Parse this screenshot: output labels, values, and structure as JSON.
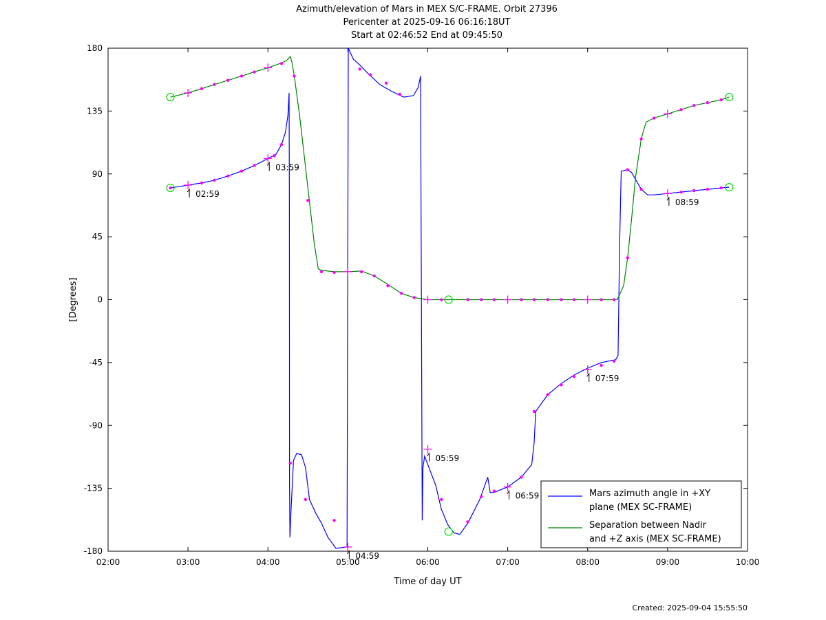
{
  "header": {
    "title": "Azimuth/elevation of Mars in MEX S/C-FRAME.  Orbit 27396",
    "pericenter": "Pericenter at 2025-09-16 06:16:18UT",
    "start_end": "Start at 02:46:52 End at 09:45:50"
  },
  "footer": {
    "created": "Created: 2025-09-04 15:55:50"
  },
  "chart_data": {
    "type": "line",
    "xlabel": "Time of day UT",
    "ylabel": "[Degrees]",
    "xlim": [
      2,
      10
    ],
    "ylim": [
      -180,
      180
    ],
    "x_unit": "hours of day UT",
    "x_ticks": [
      {
        "v": 2,
        "label": "02:00"
      },
      {
        "v": 3,
        "label": "03:00"
      },
      {
        "v": 4,
        "label": "04:00"
      },
      {
        "v": 5,
        "label": "05:00"
      },
      {
        "v": 6,
        "label": "06:00"
      },
      {
        "v": 7,
        "label": "07:00"
      },
      {
        "v": 8,
        "label": "08:00"
      },
      {
        "v": 9,
        "label": "09:00"
      },
      {
        "v": 10,
        "label": "10:00"
      }
    ],
    "y_ticks": [
      {
        "v": 180,
        "label": "180"
      },
      {
        "v": 135,
        "label": "135"
      },
      {
        "v": 90,
        "label": "90"
      },
      {
        "v": 45,
        "label": "45"
      },
      {
        "v": 0,
        "label": "0"
      },
      {
        "v": -45,
        "label": "-45"
      },
      {
        "v": -90,
        "label": "-90"
      },
      {
        "v": -135,
        "label": "-135"
      },
      {
        "v": -180,
        "label": "-180"
      }
    ],
    "grid": false,
    "legend_position": "bottom-right",
    "series": [
      {
        "name": "Mars azimuth angle in +XY plane (MEX SC-FRAME)",
        "legend_lines": [
          "Mars azimuth angle in +XY",
          "plane (MEX SC-FRAME)"
        ],
        "color": "#0000ff",
        "points": [
          [
            2.78,
            80
          ],
          [
            3.0,
            82
          ],
          [
            3.17,
            83.5
          ],
          [
            3.33,
            85.5
          ],
          [
            3.5,
            88.5
          ],
          [
            3.67,
            92
          ],
          [
            3.83,
            96
          ],
          [
            4.0,
            101
          ],
          [
            4.1,
            104
          ],
          [
            4.17,
            111
          ],
          [
            4.22,
            120
          ],
          [
            4.25,
            132
          ],
          [
            4.265,
            148
          ],
          [
            4.268,
            68
          ],
          [
            4.27,
            -130
          ],
          [
            4.275,
            -170
          ],
          [
            4.29,
            -150
          ],
          [
            4.32,
            -115
          ],
          [
            4.36,
            -110
          ],
          [
            4.42,
            -111
          ],
          [
            4.47,
            -120
          ],
          [
            4.52,
            -143
          ],
          [
            4.6,
            -153
          ],
          [
            4.67,
            -160
          ],
          [
            4.75,
            -170
          ],
          [
            4.85,
            -178
          ],
          [
            4.99,
            -177
          ],
          [
            5.005,
            180
          ],
          [
            5.07,
            172
          ],
          [
            5.15,
            168
          ],
          [
            5.25,
            162
          ],
          [
            5.4,
            154
          ],
          [
            5.55,
            149
          ],
          [
            5.7,
            145
          ],
          [
            5.82,
            146
          ],
          [
            5.88,
            152
          ],
          [
            5.91,
            160
          ],
          [
            5.93,
            -158
          ],
          [
            5.94,
            -120
          ],
          [
            5.96,
            -112
          ],
          [
            6.0,
            -118
          ],
          [
            6.1,
            -133
          ],
          [
            6.17,
            -150
          ],
          [
            6.25,
            -161
          ],
          [
            6.33,
            -167
          ],
          [
            6.4,
            -168
          ],
          [
            6.5,
            -160
          ],
          [
            6.65,
            -143
          ],
          [
            6.75,
            -127
          ],
          [
            6.78,
            -138
          ],
          [
            6.83,
            -138
          ],
          [
            7.0,
            -134
          ],
          [
            7.17,
            -127
          ],
          [
            7.3,
            -118
          ],
          [
            7.33,
            -103
          ],
          [
            7.35,
            -80
          ],
          [
            7.5,
            -68
          ],
          [
            7.67,
            -60
          ],
          [
            7.83,
            -54
          ],
          [
            8.0,
            -49
          ],
          [
            8.17,
            -45
          ],
          [
            8.35,
            -43
          ],
          [
            8.38,
            -40
          ],
          [
            8.4,
            40
          ],
          [
            8.42,
            92
          ],
          [
            8.5,
            93
          ],
          [
            8.55,
            91
          ],
          [
            8.67,
            79
          ],
          [
            8.75,
            75
          ],
          [
            8.83,
            75
          ],
          [
            9.0,
            76
          ],
          [
            9.17,
            77
          ],
          [
            9.33,
            78
          ],
          [
            9.5,
            79
          ],
          [
            9.67,
            80
          ],
          [
            9.77,
            80.5
          ]
        ]
      },
      {
        "name": "Separation between Nadir and +Z axis (MEX SC-FRAME)",
        "legend_lines": [
          "Separation between Nadir",
          "and +Z axis (MEX SC-FRAME)"
        ],
        "color": "#008000",
        "points": [
          [
            2.78,
            145
          ],
          [
            3.0,
            148
          ],
          [
            3.17,
            151
          ],
          [
            3.33,
            154
          ],
          [
            3.5,
            157
          ],
          [
            3.67,
            160
          ],
          [
            3.83,
            163
          ],
          [
            4.0,
            166
          ],
          [
            4.15,
            169
          ],
          [
            4.23,
            171
          ],
          [
            4.28,
            174
          ],
          [
            4.3,
            170
          ],
          [
            4.33,
            160
          ],
          [
            4.4,
            130
          ],
          [
            4.5,
            80
          ],
          [
            4.58,
            40
          ],
          [
            4.63,
            22
          ],
          [
            4.67,
            21
          ],
          [
            4.83,
            20
          ],
          [
            5.0,
            20
          ],
          [
            5.17,
            20.5
          ],
          [
            5.33,
            17
          ],
          [
            5.5,
            11
          ],
          [
            5.67,
            4.5
          ],
          [
            5.83,
            1.5
          ],
          [
            6.0,
            0
          ],
          [
            6.5,
            0
          ],
          [
            7.0,
            0
          ],
          [
            7.5,
            0
          ],
          [
            8.0,
            0
          ],
          [
            8.37,
            0
          ],
          [
            8.45,
            10
          ],
          [
            8.5,
            30
          ],
          [
            8.55,
            58
          ],
          [
            8.6,
            88
          ],
          [
            8.67,
            115
          ],
          [
            8.73,
            127
          ],
          [
            8.83,
            130
          ],
          [
            9.0,
            133
          ],
          [
            9.17,
            136
          ],
          [
            9.33,
            139
          ],
          [
            9.5,
            141
          ],
          [
            9.67,
            143
          ],
          [
            9.77,
            145
          ]
        ]
      }
    ],
    "markers": {
      "dots": [
        [
          2.78,
          80
        ],
        [
          3.17,
          83.5
        ],
        [
          3.33,
          85.5
        ],
        [
          3.5,
          88.5
        ],
        [
          3.67,
          92
        ],
        [
          3.83,
          96
        ],
        [
          4.17,
          111
        ],
        [
          4.08,
          103
        ],
        [
          4.28,
          -117
        ],
        [
          4.47,
          -143
        ],
        [
          4.83,
          -158
        ],
        [
          5.15,
          165
        ],
        [
          5.28,
          161
        ],
        [
          5.48,
          155
        ],
        [
          5.65,
          147
        ],
        [
          6.17,
          -143
        ],
        [
          6.5,
          -159
        ],
        [
          6.67,
          -141
        ],
        [
          6.83,
          -137
        ],
        [
          7.17,
          -127
        ],
        [
          7.33,
          -80
        ],
        [
          7.5,
          -68
        ],
        [
          7.67,
          -61
        ],
        [
          7.83,
          -55
        ],
        [
          8.17,
          -47
        ],
        [
          8.33,
          -44
        ],
        [
          8.5,
          93
        ],
        [
          8.67,
          79
        ],
        [
          9.17,
          77
        ],
        [
          9.33,
          78
        ],
        [
          9.5,
          79
        ],
        [
          9.67,
          80
        ],
        [
          3.17,
          151
        ],
        [
          3.33,
          154
        ],
        [
          3.5,
          157
        ],
        [
          3.67,
          160
        ],
        [
          3.83,
          163
        ],
        [
          4.17,
          169
        ],
        [
          4.33,
          160
        ],
        [
          4.5,
          71
        ],
        [
          4.67,
          20
        ],
        [
          4.83,
          19.5
        ],
        [
          5.17,
          20
        ],
        [
          5.33,
          17
        ],
        [
          5.5,
          10
        ],
        [
          5.67,
          4.5
        ],
        [
          5.83,
          1.5
        ],
        [
          6.17,
          0
        ],
        [
          6.5,
          0
        ],
        [
          6.67,
          0
        ],
        [
          6.83,
          0
        ],
        [
          7.17,
          0
        ],
        [
          7.33,
          0
        ],
        [
          7.5,
          0
        ],
        [
          7.67,
          0
        ],
        [
          7.83,
          0
        ],
        [
          8.17,
          0
        ],
        [
          8.33,
          0
        ],
        [
          8.5,
          30
        ],
        [
          8.67,
          115
        ],
        [
          8.83,
          130
        ],
        [
          9.17,
          136
        ],
        [
          9.33,
          139
        ],
        [
          9.5,
          141
        ],
        [
          9.67,
          143
        ]
      ],
      "crosses": [
        [
          3.0,
          82
        ],
        [
          4.0,
          101
        ],
        [
          5.0,
          -177
        ],
        [
          6.0,
          -107
        ],
        [
          7.0,
          -134
        ],
        [
          8.0,
          -50
        ],
        [
          9.0,
          76
        ],
        [
          3.0,
          148
        ],
        [
          4.0,
          166
        ],
        [
          5.0,
          20
        ],
        [
          6.0,
          0
        ],
        [
          7.0,
          0
        ],
        [
          8.0,
          0
        ],
        [
          9.0,
          133
        ]
      ],
      "circles": [
        [
          2.78,
          80
        ],
        [
          2.78,
          145
        ],
        [
          9.77,
          80.5
        ],
        [
          9.77,
          145
        ],
        [
          6.26,
          0
        ],
        [
          6.26,
          -166
        ]
      ]
    },
    "annotations": [
      {
        "x": 3.0,
        "y": 82,
        "label": "02:59"
      },
      {
        "x": 4.0,
        "y": 101,
        "label": "03:59"
      },
      {
        "x": 5.0,
        "y": -177,
        "label": "04:59"
      },
      {
        "x": 6.0,
        "y": -107,
        "label": "05:59"
      },
      {
        "x": 7.0,
        "y": -134,
        "label": "06:59"
      },
      {
        "x": 8.0,
        "y": -50,
        "label": "07:59"
      },
      {
        "x": 9.0,
        "y": 76,
        "label": "08:59"
      }
    ]
  }
}
